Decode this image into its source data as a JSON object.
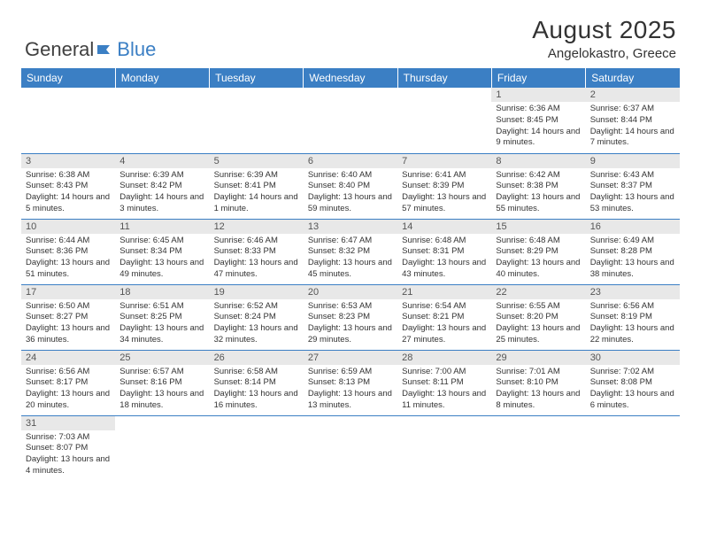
{
  "logo": {
    "general": "General",
    "blue": "Blue",
    "flag_color": "#3b7fc4"
  },
  "title": "August 2025",
  "location": "Angelokastro, Greece",
  "colors": {
    "header_bg": "#3b7fc4",
    "header_text": "#ffffff",
    "daynum_bg": "#e8e8e8",
    "cell_border": "#3b7fc4"
  },
  "day_headers": [
    "Sunday",
    "Monday",
    "Tuesday",
    "Wednesday",
    "Thursday",
    "Friday",
    "Saturday"
  ],
  "weeks": [
    [
      null,
      null,
      null,
      null,
      null,
      {
        "n": "1",
        "sunrise": "Sunrise: 6:36 AM",
        "sunset": "Sunset: 8:45 PM",
        "daylight": "Daylight: 14 hours and 9 minutes."
      },
      {
        "n": "2",
        "sunrise": "Sunrise: 6:37 AM",
        "sunset": "Sunset: 8:44 PM",
        "daylight": "Daylight: 14 hours and 7 minutes."
      }
    ],
    [
      {
        "n": "3",
        "sunrise": "Sunrise: 6:38 AM",
        "sunset": "Sunset: 8:43 PM",
        "daylight": "Daylight: 14 hours and 5 minutes."
      },
      {
        "n": "4",
        "sunrise": "Sunrise: 6:39 AM",
        "sunset": "Sunset: 8:42 PM",
        "daylight": "Daylight: 14 hours and 3 minutes."
      },
      {
        "n": "5",
        "sunrise": "Sunrise: 6:39 AM",
        "sunset": "Sunset: 8:41 PM",
        "daylight": "Daylight: 14 hours and 1 minute."
      },
      {
        "n": "6",
        "sunrise": "Sunrise: 6:40 AM",
        "sunset": "Sunset: 8:40 PM",
        "daylight": "Daylight: 13 hours and 59 minutes."
      },
      {
        "n": "7",
        "sunrise": "Sunrise: 6:41 AM",
        "sunset": "Sunset: 8:39 PM",
        "daylight": "Daylight: 13 hours and 57 minutes."
      },
      {
        "n": "8",
        "sunrise": "Sunrise: 6:42 AM",
        "sunset": "Sunset: 8:38 PM",
        "daylight": "Daylight: 13 hours and 55 minutes."
      },
      {
        "n": "9",
        "sunrise": "Sunrise: 6:43 AM",
        "sunset": "Sunset: 8:37 PM",
        "daylight": "Daylight: 13 hours and 53 minutes."
      }
    ],
    [
      {
        "n": "10",
        "sunrise": "Sunrise: 6:44 AM",
        "sunset": "Sunset: 8:36 PM",
        "daylight": "Daylight: 13 hours and 51 minutes."
      },
      {
        "n": "11",
        "sunrise": "Sunrise: 6:45 AM",
        "sunset": "Sunset: 8:34 PM",
        "daylight": "Daylight: 13 hours and 49 minutes."
      },
      {
        "n": "12",
        "sunrise": "Sunrise: 6:46 AM",
        "sunset": "Sunset: 8:33 PM",
        "daylight": "Daylight: 13 hours and 47 minutes."
      },
      {
        "n": "13",
        "sunrise": "Sunrise: 6:47 AM",
        "sunset": "Sunset: 8:32 PM",
        "daylight": "Daylight: 13 hours and 45 minutes."
      },
      {
        "n": "14",
        "sunrise": "Sunrise: 6:48 AM",
        "sunset": "Sunset: 8:31 PM",
        "daylight": "Daylight: 13 hours and 43 minutes."
      },
      {
        "n": "15",
        "sunrise": "Sunrise: 6:48 AM",
        "sunset": "Sunset: 8:29 PM",
        "daylight": "Daylight: 13 hours and 40 minutes."
      },
      {
        "n": "16",
        "sunrise": "Sunrise: 6:49 AM",
        "sunset": "Sunset: 8:28 PM",
        "daylight": "Daylight: 13 hours and 38 minutes."
      }
    ],
    [
      {
        "n": "17",
        "sunrise": "Sunrise: 6:50 AM",
        "sunset": "Sunset: 8:27 PM",
        "daylight": "Daylight: 13 hours and 36 minutes."
      },
      {
        "n": "18",
        "sunrise": "Sunrise: 6:51 AM",
        "sunset": "Sunset: 8:25 PM",
        "daylight": "Daylight: 13 hours and 34 minutes."
      },
      {
        "n": "19",
        "sunrise": "Sunrise: 6:52 AM",
        "sunset": "Sunset: 8:24 PM",
        "daylight": "Daylight: 13 hours and 32 minutes."
      },
      {
        "n": "20",
        "sunrise": "Sunrise: 6:53 AM",
        "sunset": "Sunset: 8:23 PM",
        "daylight": "Daylight: 13 hours and 29 minutes."
      },
      {
        "n": "21",
        "sunrise": "Sunrise: 6:54 AM",
        "sunset": "Sunset: 8:21 PM",
        "daylight": "Daylight: 13 hours and 27 minutes."
      },
      {
        "n": "22",
        "sunrise": "Sunrise: 6:55 AM",
        "sunset": "Sunset: 8:20 PM",
        "daylight": "Daylight: 13 hours and 25 minutes."
      },
      {
        "n": "23",
        "sunrise": "Sunrise: 6:56 AM",
        "sunset": "Sunset: 8:19 PM",
        "daylight": "Daylight: 13 hours and 22 minutes."
      }
    ],
    [
      {
        "n": "24",
        "sunrise": "Sunrise: 6:56 AM",
        "sunset": "Sunset: 8:17 PM",
        "daylight": "Daylight: 13 hours and 20 minutes."
      },
      {
        "n": "25",
        "sunrise": "Sunrise: 6:57 AM",
        "sunset": "Sunset: 8:16 PM",
        "daylight": "Daylight: 13 hours and 18 minutes."
      },
      {
        "n": "26",
        "sunrise": "Sunrise: 6:58 AM",
        "sunset": "Sunset: 8:14 PM",
        "daylight": "Daylight: 13 hours and 16 minutes."
      },
      {
        "n": "27",
        "sunrise": "Sunrise: 6:59 AM",
        "sunset": "Sunset: 8:13 PM",
        "daylight": "Daylight: 13 hours and 13 minutes."
      },
      {
        "n": "28",
        "sunrise": "Sunrise: 7:00 AM",
        "sunset": "Sunset: 8:11 PM",
        "daylight": "Daylight: 13 hours and 11 minutes."
      },
      {
        "n": "29",
        "sunrise": "Sunrise: 7:01 AM",
        "sunset": "Sunset: 8:10 PM",
        "daylight": "Daylight: 13 hours and 8 minutes."
      },
      {
        "n": "30",
        "sunrise": "Sunrise: 7:02 AM",
        "sunset": "Sunset: 8:08 PM",
        "daylight": "Daylight: 13 hours and 6 minutes."
      }
    ],
    [
      {
        "n": "31",
        "sunrise": "Sunrise: 7:03 AM",
        "sunset": "Sunset: 8:07 PM",
        "daylight": "Daylight: 13 hours and 4 minutes."
      },
      null,
      null,
      null,
      null,
      null,
      null
    ]
  ]
}
